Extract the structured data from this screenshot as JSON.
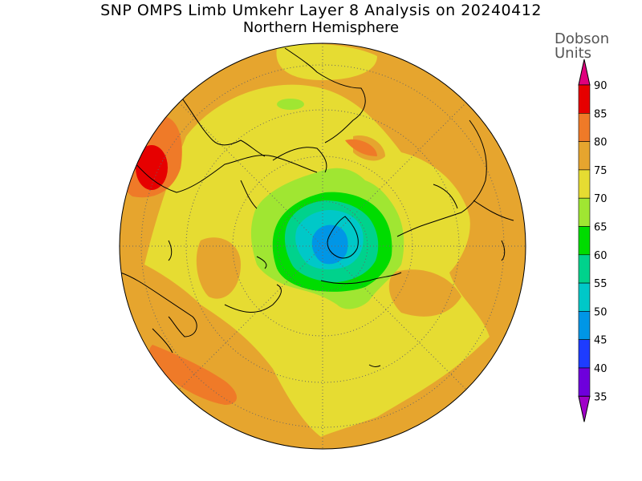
{
  "title": {
    "line1": "SNP OMPS Limb Umkehr Layer 8 Analysis on 20240412",
    "line2": "Northern Hemisphere"
  },
  "colorbar": {
    "units_line1": "Dobson",
    "units_line2": "Units",
    "levels": [
      {
        "value": "90",
        "color": "#e0007e"
      },
      {
        "value": "85",
        "color": "#e60000"
      },
      {
        "value": "80",
        "color": "#ef7a28"
      },
      {
        "value": "75",
        "color": "#e6a52e"
      },
      {
        "value": "70",
        "color": "#e6dc32"
      },
      {
        "value": "65",
        "color": "#a0e632"
      },
      {
        "value": "60",
        "color": "#00dc00"
      },
      {
        "value": "55",
        "color": "#00d28c"
      },
      {
        "value": "50",
        "color": "#00c8c8"
      },
      {
        "value": "45",
        "color": "#0096e6"
      },
      {
        "value": "40",
        "color": "#1e3cff"
      },
      {
        "value": "35",
        "color": "#6e00dc"
      }
    ],
    "bottom_color": "#a000c8",
    "top_color": "#e0007e"
  },
  "map": {
    "projection": "north-polar-stereographic",
    "background_color": "#e6a52e"
  }
}
